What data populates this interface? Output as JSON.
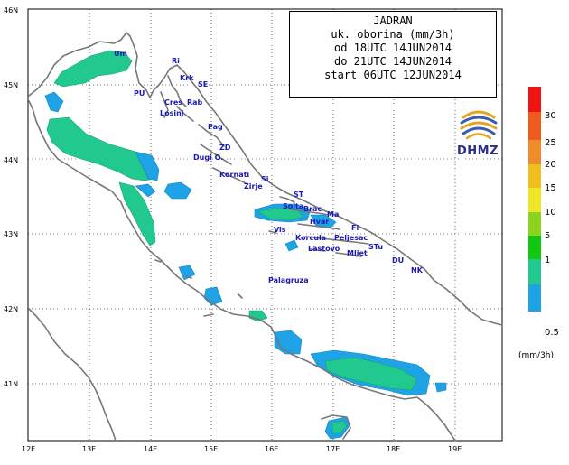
{
  "map": {
    "lat_labels": [
      "46N",
      "45N",
      "44N",
      "43N",
      "42N",
      "41N"
    ],
    "lon_labels": [
      "12E",
      "13E",
      "14E",
      "15E",
      "16E",
      "17E",
      "18E",
      "19E"
    ],
    "places": [
      "Um",
      "Ri",
      "Krk",
      "SE",
      "PU",
      "Cres",
      "Rab",
      "Losinj",
      "Pag",
      "ZD",
      "Dugi O.",
      "Kornati",
      "Si",
      "Zirje",
      "ST",
      "Solta",
      "Brac",
      "Ma",
      "Hvar",
      "Vis",
      "Fi",
      "Korcula",
      "Peljesac",
      "Lastovo",
      "Mljet",
      "STu",
      "DU",
      "NK",
      "Palagruza"
    ]
  },
  "info": {
    "lines": [
      "JADRAN",
      "uk. oborina (mm/3h)",
      "od 18UTC 14JUN2014",
      "do 21UTC 14JUN2014",
      "start 06UTC 12JUN2014"
    ]
  },
  "logo": {
    "text": "DHMZ"
  },
  "legend": {
    "labels": [
      "30",
      "25",
      "20",
      "15",
      "10",
      "5",
      "1",
      "0.5"
    ],
    "colors": [
      "#f01410",
      "#f05a1e",
      "#f08c28",
      "#f0be1e",
      "#f0e628",
      "#8cd21e",
      "#10c810",
      "#22c98e",
      "#1ea3e6"
    ],
    "unit": "(mm/3h)"
  }
}
